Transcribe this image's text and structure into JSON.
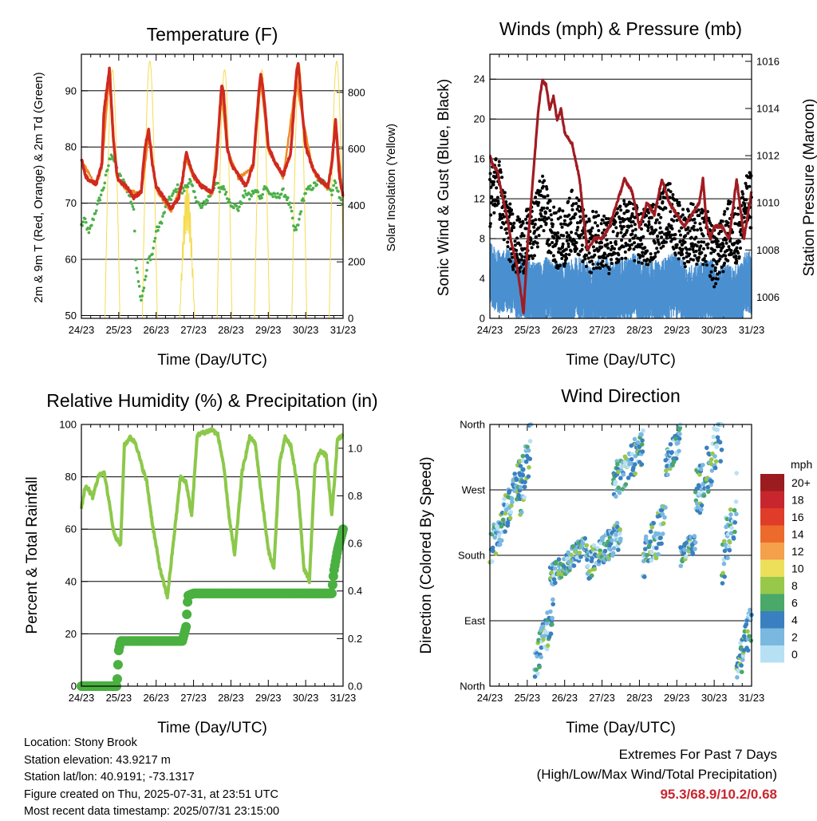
{
  "location": "Location: Stony Brook",
  "elevation": "Station elevation: 43.9217 m",
  "latlon": "Station lat/lon: 40.9191; -73.1317",
  "created": "Figure created on Thu, 2025-07-31, at 23:51 UTC",
  "recent": "Most recent data timestamp: 2025/07/31 23:15:00",
  "extremes_title": "Extremes For Past 7 Days",
  "extremes_sub": "(High/Low/Max Wind/Total Precipitation)",
  "extremes_values": "95.3/68.9/10.2/0.68",
  "colors": {
    "temp2m": "#d02a20",
    "temp9m": "#f08a24",
    "dew": "#4db04a",
    "solar": "#f5dc50",
    "wind": "#4a90d0",
    "gust": "#000000",
    "pressure": "#a01c22",
    "rh": "#8cc84a",
    "precip": "#4ab040"
  },
  "chart_data": [
    {
      "type": "line",
      "title": "Temperature (F)",
      "xlabel": "Time (Day/UTC)",
      "ylabel": "2m & 9m T (Red, Orange) & 2m Td (Green)",
      "y2label": "Solar Insolation (Yellow)",
      "x_ticks": [
        "24/23",
        "25/23",
        "26/23",
        "27/23",
        "28/23",
        "29/23",
        "30/23",
        "31/23"
      ],
      "y_ticks": [
        50,
        60,
        70,
        80,
        90
      ],
      "y2_ticks": [
        0,
        200,
        400,
        600,
        800
      ],
      "ylim": [
        49.5,
        96.5
      ],
      "y2lim": [
        0,
        935
      ],
      "grid": true,
      "series": [
        {
          "name": "2m T",
          "axis": "left",
          "color": "#d02a20",
          "x": [
            0,
            0.1,
            0.2,
            0.4,
            0.55,
            0.6,
            0.75,
            0.85,
            0.95,
            1.0,
            1.2,
            1.4,
            1.6,
            1.7,
            1.8,
            1.9,
            2.0,
            2.2,
            2.4,
            2.6,
            2.7,
            2.8,
            2.9,
            3.0,
            3.2,
            3.5,
            3.6,
            3.75,
            3.8,
            3.9,
            4.0,
            4.2,
            4.4,
            4.6,
            4.75,
            4.8,
            4.9,
            5.0,
            5.2,
            5.4,
            5.6,
            5.75,
            5.8,
            5.9,
            6.0,
            6.2,
            6.4,
            6.6,
            6.7,
            6.8,
            6.9,
            7.0
          ],
          "values": [
            78,
            75,
            74,
            73.5,
            77,
            86,
            94,
            82,
            75,
            74,
            73,
            71,
            72,
            80,
            83,
            77,
            73,
            71,
            69,
            71,
            74,
            79,
            77,
            75,
            73,
            72,
            76,
            91,
            90,
            80,
            77,
            75,
            73,
            77,
            90,
            93,
            88,
            80,
            77,
            75,
            79,
            93,
            95,
            87,
            80,
            76,
            74,
            73,
            77,
            85,
            75,
            71
          ]
        },
        {
          "name": "9m T",
          "axis": "left",
          "color": "#f08a24",
          "x": [
            0,
            0.4,
            0.55,
            0.75,
            0.85,
            0.95,
            1.2,
            1.6,
            1.8,
            2.0,
            2.4,
            2.7,
            2.8,
            3.0,
            3.5,
            3.75,
            3.9,
            4.2,
            4.6,
            4.8,
            5.0,
            5.4,
            5.75,
            5.9,
            6.2,
            6.6,
            6.8,
            7.0
          ],
          "values": [
            77.5,
            73,
            76.5,
            93,
            81.5,
            74.5,
            72.5,
            71.5,
            82,
            72.5,
            68.5,
            73.5,
            78,
            74.5,
            71.5,
            89.5,
            79.5,
            74.5,
            76.5,
            92,
            79.5,
            74.5,
            92,
            86,
            75.5,
            72.5,
            84,
            71
          ]
        },
        {
          "name": "2m Td",
          "axis": "left",
          "color": "#4db04a",
          "x": [
            0,
            0.1,
            0.2,
            0.35,
            0.5,
            0.6,
            0.7,
            0.8,
            0.9,
            1.0,
            1.1,
            1.2,
            1.3,
            1.4,
            1.45,
            1.5,
            1.55,
            1.6,
            1.7,
            1.8,
            1.9,
            2.0,
            2.1,
            2.2,
            2.3,
            2.4,
            2.5,
            2.6,
            2.7,
            2.8,
            2.9,
            3.0,
            3.2,
            3.4,
            3.5,
            3.6,
            3.7,
            3.8,
            3.9,
            4.0,
            4.2,
            4.4,
            4.5,
            4.6,
            4.7,
            4.8,
            4.9,
            5.0,
            5.2,
            5.4,
            5.5,
            5.6,
            5.7,
            5.8,
            5.9,
            6.0,
            6.2,
            6.4,
            6.6,
            6.7,
            6.8,
            6.9,
            7.0
          ],
          "values": [
            66,
            67,
            64.5,
            68,
            71,
            73,
            76,
            79,
            77,
            75,
            74,
            73,
            71,
            69,
            60,
            58,
            55,
            53,
            56,
            60,
            61,
            65,
            66,
            68,
            70,
            71,
            72,
            73,
            72,
            73,
            74,
            72,
            69,
            71,
            72,
            74,
            72,
            73,
            71,
            70,
            69,
            72,
            71,
            72,
            72,
            71,
            73,
            72,
            71,
            72,
            71,
            69,
            65,
            66,
            70,
            72,
            73,
            74,
            73,
            72,
            74,
            71,
            70
          ]
        },
        {
          "name": "Solar Insolation",
          "axis": "right",
          "color": "#f5dc50",
          "days": [
            0.83,
            1.83,
            2.83,
            3.83,
            4.83,
            5.83,
            6.83
          ],
          "peaks": [
            880,
            910,
            480,
            880,
            880,
            900,
            910
          ],
          "half_width": 0.2
        }
      ]
    },
    {
      "type": "scatter",
      "title": "Winds (mph) & Pressure (mb)",
      "xlabel": "Time (Day/UTC)",
      "ylabel": "Sonic Wind & Gust (Blue, Black)",
      "y2label": "Station Pressure (Maroon)",
      "x_ticks": [
        "24/23",
        "25/23",
        "26/23",
        "27/23",
        "28/23",
        "29/23",
        "30/23",
        "31/23"
      ],
      "y_ticks": [
        0,
        4,
        8,
        12,
        16,
        20,
        24
      ],
      "y2_ticks": [
        1006,
        1008,
        1010,
        1012,
        1014,
        1016
      ],
      "ylim": [
        0,
        26.5
      ],
      "y2lim": [
        1005.1,
        1016.3
      ],
      "grid": true,
      "series": [
        {
          "name": "Station Pressure",
          "axis": "right",
          "color": "#a01c22",
          "x": [
            0,
            0.1,
            0.2,
            0.3,
            0.45,
            0.55,
            0.7,
            0.8,
            0.9,
            1.0,
            1.1,
            1.2,
            1.3,
            1.4,
            1.5,
            1.6,
            1.7,
            1.8,
            1.9,
            2.0,
            2.2,
            2.4,
            2.6,
            2.8,
            3.0,
            3.2,
            3.4,
            3.6,
            3.8,
            4.0,
            4.2,
            4.4,
            4.6,
            4.8,
            5.0,
            5.2,
            5.4,
            5.6,
            5.7,
            5.8,
            5.9,
            6.0,
            6.2,
            6.4,
            6.6,
            6.8,
            7.0
          ],
          "values": [
            1012,
            1011.5,
            1011.4,
            1010.5,
            1009.5,
            1008.5,
            1007.5,
            1006.5,
            1005.3,
            1008,
            1010,
            1012,
            1014,
            1015.2,
            1015,
            1014,
            1014.5,
            1013.5,
            1014,
            1013,
            1012.5,
            1011,
            1008,
            1008.5,
            1008.5,
            1009,
            1010,
            1011,
            1010.5,
            1009,
            1010,
            1009.5,
            1011,
            1010,
            1009.5,
            1009,
            1009.5,
            1010,
            1011,
            1009,
            1008.5,
            1009,
            1009,
            1008.5,
            1011,
            1008.5,
            1010.5
          ]
        },
        {
          "name": "Sonic Wind",
          "axis": "left",
          "color": "#4a90d0",
          "x": [
            0,
            0.3,
            0.5,
            0.7,
            0.9,
            1.1,
            1.3,
            1.5,
            1.7,
            1.9,
            2.1,
            2.3,
            2.5,
            2.7,
            2.9,
            3.1,
            3.3,
            3.5,
            3.7,
            3.9,
            4.1,
            4.3,
            4.5,
            4.7,
            4.9,
            5.1,
            5.3,
            5.5,
            5.7,
            5.9,
            6.1,
            6.3,
            6.5,
            6.7,
            6.9,
            7.0
          ],
          "values": [
            4.5,
            3.5,
            4.0,
            3.0,
            3.5,
            2.5,
            2.5,
            3.0,
            2.5,
            2.5,
            2.5,
            3.0,
            3.0,
            2.0,
            3.0,
            3.0,
            2.5,
            3.0,
            3.0,
            3.5,
            2.5,
            3.0,
            2.5,
            3.0,
            3.5,
            3.0,
            2.0,
            2.5,
            2.5,
            3.0,
            2.0,
            2.5,
            2.0,
            2.5,
            4.0,
            3.5
          ]
        },
        {
          "name": "Gust",
          "axis": "left",
          "color": "#000000",
          "x": [
            0,
            0.2,
            0.4,
            0.6,
            0.8,
            1.0,
            1.2,
            1.4,
            1.6,
            1.8,
            2.0,
            2.2,
            2.4,
            2.6,
            2.8,
            3.0,
            3.2,
            3.4,
            3.6,
            3.8,
            4.0,
            4.2,
            4.4,
            4.6,
            4.8,
            5.0,
            5.2,
            5.4,
            5.6,
            5.8,
            6.0,
            6.2,
            6.4,
            6.6,
            6.8,
            7.0
          ],
          "values": [
            12,
            14,
            10,
            8,
            7,
            8,
            9,
            12,
            9,
            8,
            8,
            10,
            9,
            7,
            8,
            8,
            7,
            8,
            9,
            9,
            8,
            8,
            9,
            10,
            11,
            9,
            8,
            9,
            8,
            8,
            6,
            7,
            9,
            8,
            11,
            12
          ]
        }
      ]
    },
    {
      "type": "line",
      "title": "Relative Humidity (%) & Precipitation (in)",
      "xlabel": "Time (Day/UTC)",
      "ylabel": "Percent & Total Rainfall",
      "x_ticks": [
        "24/23",
        "25/23",
        "26/23",
        "27/23",
        "28/23",
        "29/23",
        "30/23",
        "31/23"
      ],
      "y_ticks": [
        0,
        20,
        40,
        60,
        80,
        100
      ],
      "y2_ticks": [
        "0.0",
        "0.2",
        "0.4",
        "0.6",
        "0.8",
        "1.0"
      ],
      "ylim": [
        0,
        100
      ],
      "y2lim": [
        0,
        1.1
      ],
      "grid": true,
      "series": [
        {
          "name": "RH",
          "axis": "left",
          "color": "#8cc84a",
          "x": [
            0,
            0.1,
            0.2,
            0.3,
            0.45,
            0.6,
            0.75,
            0.85,
            0.95,
            1.05,
            1.15,
            1.3,
            1.45,
            1.6,
            1.75,
            1.9,
            2.1,
            2.3,
            2.5,
            2.65,
            2.8,
            2.95,
            3.1,
            3.3,
            3.5,
            3.65,
            3.8,
            3.95,
            4.1,
            4.3,
            4.5,
            4.65,
            4.8,
            5.0,
            5.15,
            5.3,
            5.45,
            5.6,
            5.8,
            5.95,
            6.1,
            6.25,
            6.4,
            6.55,
            6.7,
            6.85,
            7.0
          ],
          "values": [
            68,
            76,
            75,
            72,
            80,
            82,
            70,
            60,
            56,
            54,
            92,
            95,
            93,
            85,
            78,
            62,
            45,
            34,
            60,
            80,
            78,
            65,
            96,
            97,
            98,
            96,
            85,
            65,
            50,
            82,
            95,
            93,
            75,
            52,
            45,
            85,
            95,
            92,
            75,
            45,
            40,
            85,
            90,
            88,
            65,
            94,
            96
          ]
        },
        {
          "name": "Total Rainfall",
          "axis": "right",
          "color": "#4ab040",
          "x": [
            0,
            0.95,
            1.0,
            1.05,
            2.1,
            2.7,
            2.8,
            2.85,
            3.0,
            4.0,
            5.0,
            6.0,
            6.7,
            6.75,
            6.85,
            7.0
          ],
          "values": [
            0,
            0,
            0.15,
            0.19,
            0.19,
            0.19,
            0.25,
            0.38,
            0.39,
            0.39,
            0.39,
            0.39,
            0.39,
            0.48,
            0.57,
            0.66
          ]
        }
      ]
    },
    {
      "type": "scatter",
      "title": "Wind Direction",
      "xlabel": "Time (Day/UTC)",
      "ylabel": "Direction (Colored By Speed)",
      "x_ticks": [
        "24/23",
        "25/23",
        "26/23",
        "27/23",
        "28/23",
        "29/23",
        "30/23",
        "31/23"
      ],
      "y_ticks": [
        "North",
        "East",
        "South",
        "West",
        "North"
      ],
      "ylim": [
        0,
        360
      ],
      "grid": true,
      "legend": {
        "title": "mph",
        "labels": [
          "20+",
          "18",
          "16",
          "14",
          "12",
          "10",
          "8",
          "6",
          "4",
          "2",
          "0"
        ],
        "colors": [
          "#9b1c1f",
          "#c8262e",
          "#e03c2a",
          "#ec6a2c",
          "#f5a04a",
          "#ece05a",
          "#98c84a",
          "#4aa868",
          "#3a80c0",
          "#7ab8e0",
          "#b8e0f4"
        ]
      },
      "clusters": [
        {
          "x0": 0.0,
          "x1": 0.9,
          "d0": 185,
          "d1": 300,
          "spread": 25
        },
        {
          "x0": 0.8,
          "x1": 1.1,
          "d0": 250,
          "d1": 340,
          "spread": 35
        },
        {
          "x0": 1.2,
          "x1": 1.7,
          "d0": 30,
          "d1": 100,
          "spread": 25
        },
        {
          "x0": 1.6,
          "x1": 2.6,
          "d0": 150,
          "d1": 195,
          "spread": 15
        },
        {
          "x0": 2.6,
          "x1": 3.5,
          "d0": 165,
          "d1": 210,
          "spread": 20
        },
        {
          "x0": 3.3,
          "x1": 4.1,
          "d0": 280,
          "d1": 330,
          "spread": 25
        },
        {
          "x0": 4.1,
          "x1": 4.7,
          "d0": 170,
          "d1": 230,
          "spread": 30
        },
        {
          "x0": 4.7,
          "x1": 5.1,
          "d0": 300,
          "d1": 345,
          "spread": 20
        },
        {
          "x0": 5.1,
          "x1": 5.5,
          "d0": 180,
          "d1": 200,
          "spread": 15
        },
        {
          "x0": 5.5,
          "x1": 6.2,
          "d0": 260,
          "d1": 350,
          "spread": 40
        },
        {
          "x0": 6.2,
          "x1": 6.6,
          "d0": 170,
          "d1": 260,
          "spread": 40
        },
        {
          "x0": 6.6,
          "x1": 7.0,
          "d0": 20,
          "d1": 90,
          "spread": 25
        }
      ]
    }
  ]
}
